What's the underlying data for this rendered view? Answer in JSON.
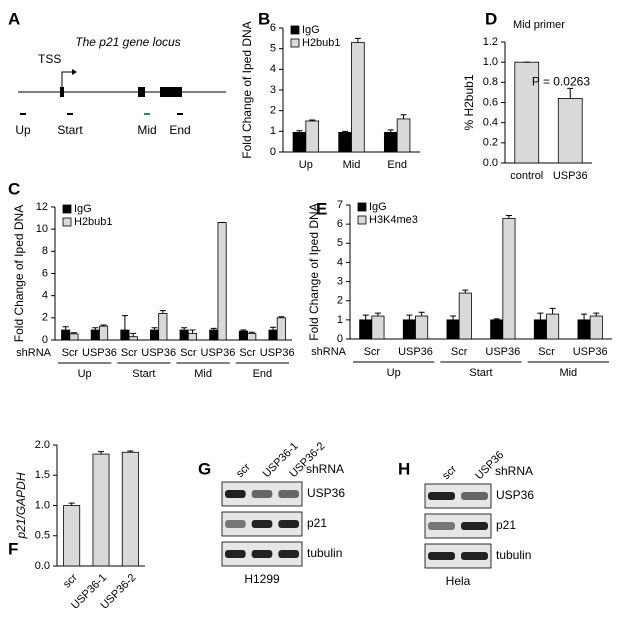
{
  "panel_a": {
    "letter": "A",
    "title": "The p21 gene locus",
    "tss": "TSS",
    "regions": [
      "Up",
      "Start",
      "Mid",
      "End"
    ]
  },
  "panel_g": {
    "letter": "G",
    "lanes": [
      "scr",
      "USP36-1",
      "USP36-2"
    ],
    "treatment": "shRNA",
    "rows": [
      "USP36",
      "p21",
      "tubulin"
    ],
    "cell_line": "H1299"
  },
  "panel_h": {
    "letter": "H",
    "lanes": [
      "scr",
      "USP36"
    ],
    "treatment": "shRNA",
    "rows": [
      "USP36",
      "p21",
      "tubulin"
    ],
    "cell_line": "Hela"
  },
  "chart_data": [
    {
      "type": "bar",
      "panel": "B",
      "ylabel": "Fold Change of Iped DNA",
      "categories": [
        "Up",
        "Mid",
        "End"
      ],
      "series": [
        {
          "name": "IgG",
          "color": "#000000",
          "values": [
            0.95,
            0.95,
            0.95
          ],
          "errors": [
            0.08,
            0.05,
            0.12
          ]
        },
        {
          "name": "H2bub1",
          "color": "#d9d9d9",
          "values": [
            1.5,
            5.3,
            1.6
          ],
          "errors": [
            0.05,
            0.2,
            0.2
          ]
        }
      ],
      "ylim": [
        0,
        6
      ],
      "yticks": [
        0,
        1,
        2,
        3,
        4,
        5,
        6
      ]
    },
    {
      "type": "bar",
      "panel": "D",
      "title": "Mid primer",
      "annotation": "P = 0.0263",
      "ylabel": "% H2bub1",
      "categories": [
        "control",
        "USP36"
      ],
      "series": [
        {
          "color": "#d9d9d9",
          "values": [
            1.0,
            0.64
          ],
          "errors": [
            0,
            0.1
          ]
        }
      ],
      "ylim": [
        0,
        1.2
      ],
      "yticks": [
        {
          "value": 0,
          "label": "0.0"
        },
        {
          "value": 0.2,
          "label": "0.2"
        },
        {
          "value": 0.4,
          "label": "0.4"
        },
        {
          "value": 0.6,
          "label": "0.6"
        },
        {
          "value": 0.8,
          "label": "0.8"
        },
        {
          "value": 1,
          "label": "1.0"
        },
        {
          "value": 1.2,
          "label": "1.2"
        }
      ]
    },
    {
      "type": "bar",
      "panel": "C",
      "ylabel": "Fold Change of Iped DNA",
      "x_prefix": "shRNA",
      "groups": [
        {
          "name": "Up",
          "categories": [
            "Scr",
            "USP36"
          ]
        },
        {
          "name": "Start",
          "categories": [
            "Scr",
            "USP36"
          ]
        },
        {
          "name": "Mid",
          "categories": [
            "Scr",
            "USP36"
          ]
        },
        {
          "name": "End",
          "categories": [
            "Scr",
            "USP36"
          ]
        }
      ],
      "series": [
        {
          "name": "IgG",
          "color": "#000000",
          "values": [
            0.9,
            0.9,
            0.9,
            0.9,
            0.9,
            0.9,
            0.8,
            0.9
          ],
          "errors": [
            0.3,
            0.2,
            1.3,
            0.2,
            0.2,
            0.15,
            0.1,
            0.25
          ]
        },
        {
          "name": "H2bub1",
          "color": "#d9d9d9",
          "values": [
            0.55,
            1.25,
            0.3,
            2.4,
            0.6,
            10.6,
            0.6,
            2.0
          ],
          "errors": [
            0.1,
            0.1,
            0.3,
            0.25,
            0.3,
            0,
            0.1,
            0.1
          ]
        }
      ],
      "ylim": [
        0,
        12
      ],
      "yticks": [
        0,
        2,
        4,
        6,
        8,
        10,
        12
      ]
    },
    {
      "type": "bar",
      "panel": "E",
      "ylabel": "Fold Change of Iped DNA",
      "x_prefix": "shRNA",
      "groups": [
        {
          "name": "Up",
          "categories": [
            "Scr",
            "USP36"
          ]
        },
        {
          "name": "Start",
          "categories": [
            "Scr",
            "USP36"
          ]
        },
        {
          "name": "Mid",
          "categories": [
            "Scr",
            "USP36"
          ]
        }
      ],
      "series": [
        {
          "name": "IgG",
          "color": "#000000",
          "values": [
            1.0,
            1.0,
            1.0,
            1.0,
            1.0,
            1.0
          ],
          "errors": [
            0.25,
            0.25,
            0.2,
            0.05,
            0.35,
            0.3
          ]
        },
        {
          "name": "H3K4me3",
          "color": "#d9d9d9",
          "values": [
            1.2,
            1.2,
            2.4,
            6.3,
            1.3,
            1.2
          ],
          "errors": [
            0.15,
            0.2,
            0.15,
            0.15,
            0.3,
            0.15
          ]
        }
      ],
      "ylim": [
        0,
        7
      ],
      "yticks": [
        0,
        1,
        2,
        3,
        4,
        5,
        6,
        7
      ]
    },
    {
      "type": "bar",
      "panel": "F",
      "ylabel": "p21/GAPDH",
      "rotate_labels": true,
      "categories": [
        "scr",
        "USP36-1",
        "USP36-2"
      ],
      "series": [
        {
          "color": "#d9d9d9",
          "values": [
            1.0,
            1.85,
            1.88
          ],
          "errors": [
            0.04,
            0.04,
            0.02
          ]
        }
      ],
      "ylim": [
        0,
        2
      ],
      "yticks": [
        {
          "value": 0,
          "label": "0.0"
        },
        {
          "value": 0.5,
          "label": "0.5"
        },
        {
          "value": 1,
          "label": "1.0"
        },
        {
          "value": 1.5,
          "label": "1.5"
        },
        {
          "value": 2,
          "label": "2.0"
        }
      ]
    }
  ]
}
